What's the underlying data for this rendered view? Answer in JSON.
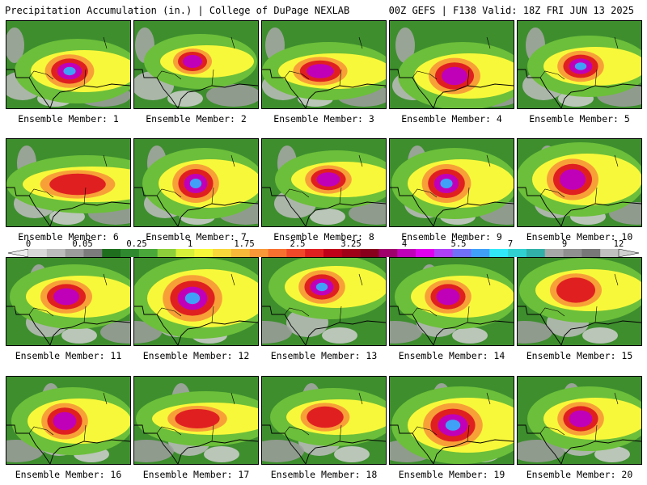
{
  "header": {
    "title": "Precipitation Accumulation (in.) | College of DuPage NEXLAB",
    "run_info": "00Z GEFS | F138 Valid: 18Z FRI JUN 13 2025"
  },
  "colorbar": {
    "tick_labels": [
      "0",
      "0.05",
      "0.25",
      "1",
      "1.75",
      "2.5",
      "3.25",
      "4",
      "5.5",
      "7",
      "9",
      "12"
    ],
    "colors": [
      "#d8d8d8",
      "#bcbcbc",
      "#9c9c9c",
      "#7c7c7c",
      "#1e6e1e",
      "#2f8a2f",
      "#4aa83a",
      "#8ccf3a",
      "#d8f03a",
      "#f8f83a",
      "#f8d83a",
      "#f8b83a",
      "#f89838",
      "#f87030",
      "#f04828",
      "#e02020",
      "#c00018",
      "#a00018",
      "#88001c",
      "#a0006c",
      "#c000b8",
      "#e000f0",
      "#b040f8",
      "#7070f8",
      "#40a0f8",
      "#30e8f8",
      "#30d0d0",
      "#30b0a8",
      "#a8a8a8",
      "#909090",
      "#787878",
      "#c0c0c0"
    ]
  },
  "panels": [
    {
      "label": "Ensemble Member: 1"
    },
    {
      "label": "Ensemble Member: 2"
    },
    {
      "label": "Ensemble Member: 3"
    },
    {
      "label": "Ensemble Member: 4"
    },
    {
      "label": "Ensemble Member: 5"
    },
    {
      "label": "Ensemble Member: 6"
    },
    {
      "label": "Ensemble Member: 7"
    },
    {
      "label": "Ensemble Member: 8"
    },
    {
      "label": "Ensemble Member: 9"
    },
    {
      "label": "Ensemble Member: 10"
    },
    {
      "label": "Ensemble Member: 11"
    },
    {
      "label": "Ensemble Member: 12"
    },
    {
      "label": "Ensemble Member: 13"
    },
    {
      "label": "Ensemble Member: 14"
    },
    {
      "label": "Ensemble Member: 15"
    },
    {
      "label": "Ensemble Member: 16"
    },
    {
      "label": "Ensemble Member: 17"
    },
    {
      "label": "Ensemble Member: 18"
    },
    {
      "label": "Ensemble Member: 19"
    },
    {
      "label": "Ensemble Member: 20"
    }
  ]
}
